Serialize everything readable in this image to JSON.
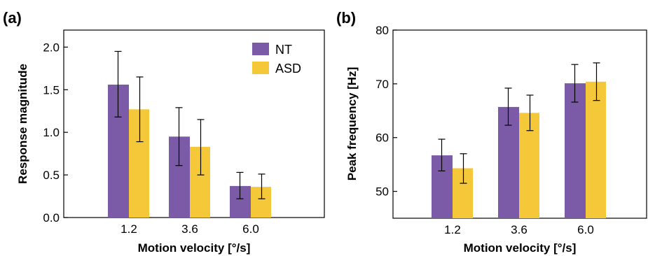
{
  "colors": {
    "NT": "#7b5ba7",
    "ASD": "#f5c83a"
  },
  "chart_data": [
    {
      "panel": "(a)",
      "type": "bar",
      "xlabel": "Motion velocity [°/s]",
      "ylabel": "Response magnitude",
      "categories": [
        "1.2",
        "3.6",
        "6.0"
      ],
      "ylim": [
        0,
        2.2
      ],
      "yticks": [
        "0.0",
        "0.5",
        "1.0",
        "1.5",
        "2.0"
      ],
      "legend": "top-right",
      "series": [
        {
          "name": "NT",
          "values": [
            1.56,
            0.95,
            0.37
          ],
          "err_low": [
            1.18,
            0.61,
            0.22
          ],
          "err_high": [
            1.95,
            1.29,
            0.53
          ]
        },
        {
          "name": "ASD",
          "values": [
            1.27,
            0.83,
            0.36
          ],
          "err_low": [
            0.89,
            0.5,
            0.22
          ],
          "err_high": [
            1.65,
            1.15,
            0.51
          ]
        }
      ]
    },
    {
      "panel": "(b)",
      "type": "bar",
      "xlabel": "Motion velocity [°/s]",
      "ylabel": "Peak frequency [Hz]",
      "categories": [
        "1.2",
        "3.6",
        "6.0"
      ],
      "ylim": [
        45,
        80
      ],
      "yticks": [
        "50",
        "60",
        "70",
        "80"
      ],
      "series": [
        {
          "name": "NT",
          "values": [
            56.7,
            65.7,
            70.1
          ],
          "err_low": [
            53.8,
            62.3,
            66.6
          ],
          "err_high": [
            59.7,
            69.2,
            73.6
          ]
        },
        {
          "name": "ASD",
          "values": [
            54.3,
            64.6,
            70.4
          ],
          "err_low": [
            51.5,
            61.3,
            66.9
          ],
          "err_high": [
            57.0,
            67.9,
            73.9
          ]
        }
      ]
    }
  ]
}
